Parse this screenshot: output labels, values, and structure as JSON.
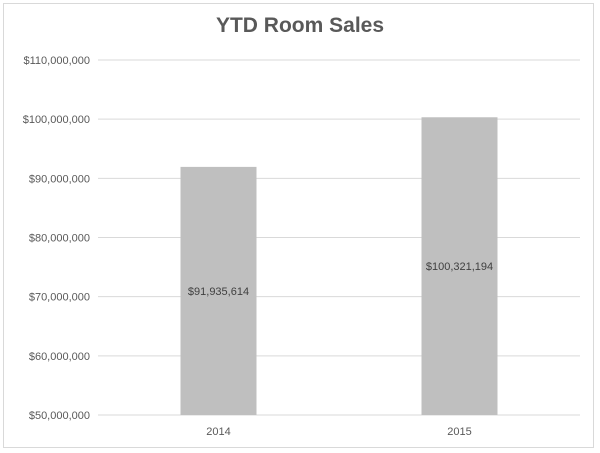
{
  "chart_data": {
    "type": "bar",
    "title": "YTD Room Sales",
    "categories": [
      "2014",
      "2015"
    ],
    "values": [
      91935614,
      100321194
    ],
    "data_labels": [
      "$91,935,614",
      "$100,321,194"
    ],
    "ylim": [
      50000000,
      110000000
    ],
    "yticks": [
      50000000,
      60000000,
      70000000,
      80000000,
      90000000,
      100000000,
      110000000
    ],
    "ytick_labels": [
      "$50,000,000",
      "$60,000,000",
      "$70,000,000",
      "$80,000,000",
      "$90,000,000",
      "$100,000,000",
      "$110,000,000"
    ],
    "xlabel": "",
    "ylabel": "",
    "grid": true,
    "legend": "none",
    "colors": {
      "bar": "#bfbfbf",
      "grid": "#d9d9d9",
      "text": "#595959"
    }
  }
}
